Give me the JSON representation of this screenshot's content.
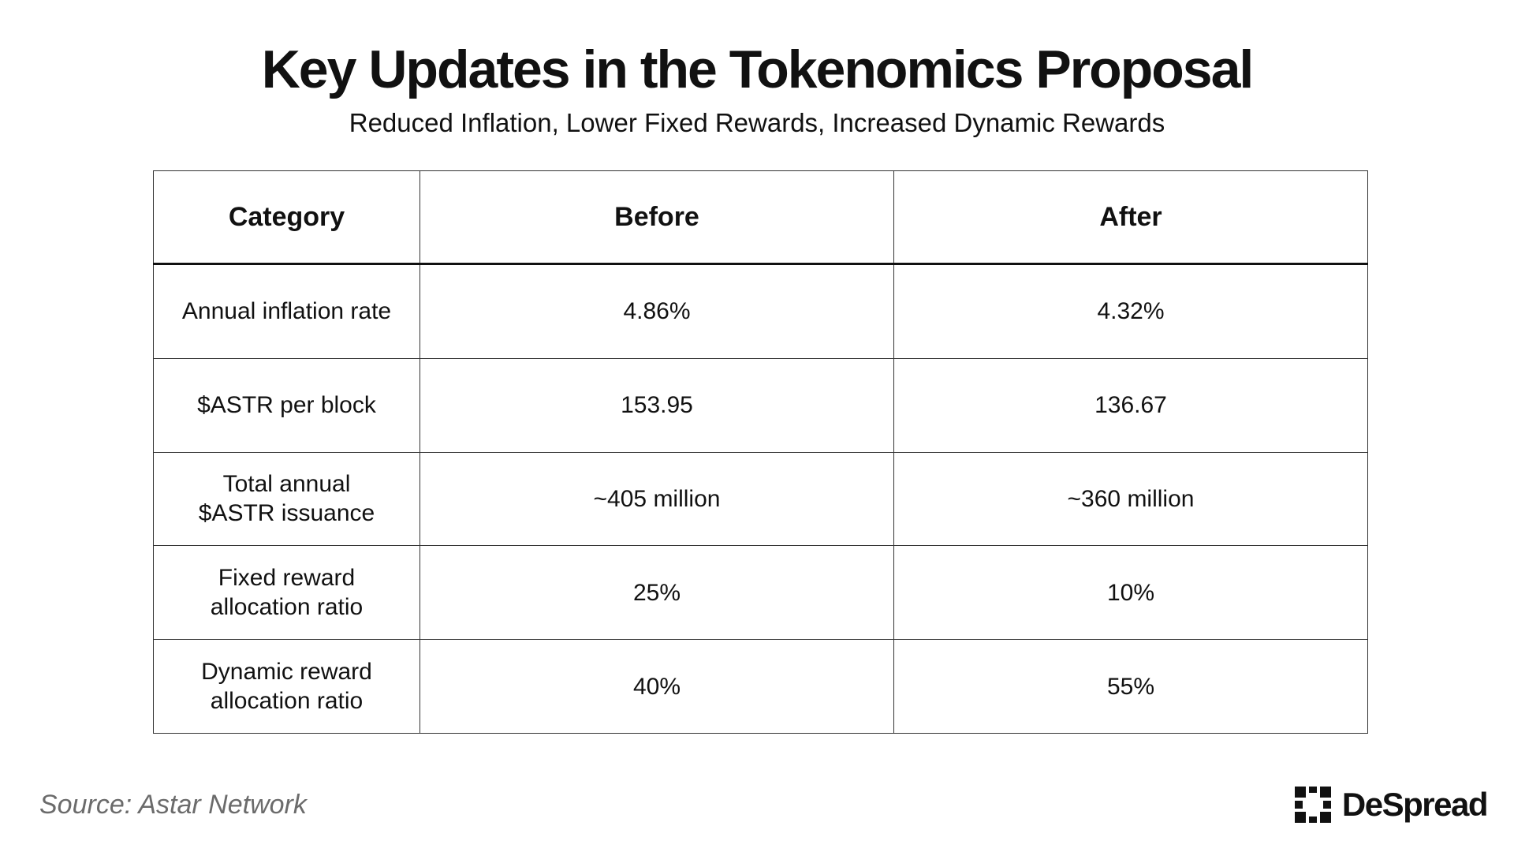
{
  "header": {
    "title": "Key Updates in the Tokenomics Proposal",
    "subtitle": "Reduced Inflation, Lower Fixed Rewards, Increased Dynamic Rewards"
  },
  "table": {
    "columns": [
      "Category",
      "Before",
      "After"
    ],
    "rows": [
      {
        "category": "Annual inflation rate",
        "before": "4.86%",
        "after": "4.32%"
      },
      {
        "category": "$ASTR per block",
        "before": "153.95",
        "after": "136.67"
      },
      {
        "category": "Total annual\n$ASTR issuance",
        "before": "~405 million",
        "after": "~360 million"
      },
      {
        "category": "Fixed reward\nallocation ratio",
        "before": "25%",
        "after": "10%"
      },
      {
        "category": "Dynamic reward\nallocation ratio",
        "before": "40%",
        "after": "55%"
      }
    ]
  },
  "footer": {
    "source": "Source: Astar Network",
    "brand_name": "DeSpread",
    "brand_icon": "despread-logo-icon"
  }
}
